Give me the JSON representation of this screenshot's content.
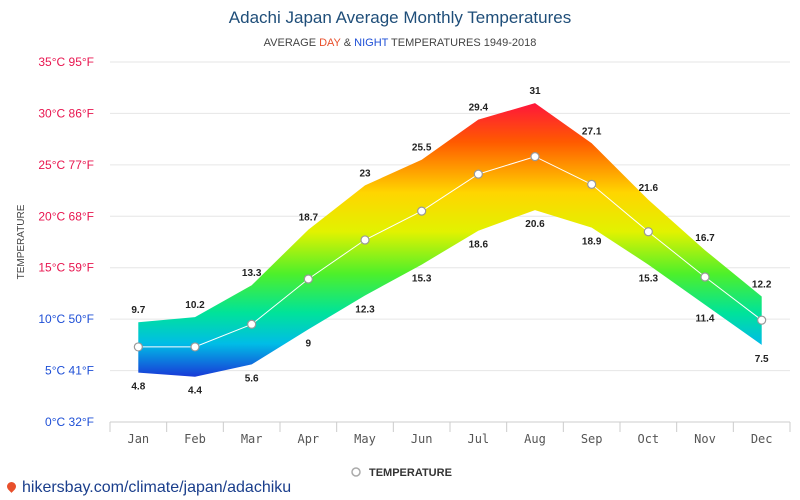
{
  "title": "Adachi Japan Average Monthly Temperatures",
  "subtitle": {
    "part1": "AVERAGE ",
    "day": "DAY",
    "amp": " & ",
    "night": "NIGHT",
    "part2": " TEMPERATURES 1949-2018"
  },
  "source": "hikersbay.com/climate/japan/adachiku",
  "legend_label": "TEMPERATURE",
  "colors": {
    "title": "#1f4e79",
    "day": "#e8502c",
    "night": "#1e4fd6",
    "ytick_warm": "#e8154f",
    "ytick_cold": "#1e4fd6"
  },
  "chart_data": {
    "type": "area",
    "title": "Adachi Japan Average Monthly Temperatures",
    "ylabel": "TEMPERATURE",
    "categories": [
      "Jan",
      "Feb",
      "Mar",
      "Apr",
      "May",
      "Jun",
      "Jul",
      "Aug",
      "Sep",
      "Oct",
      "Nov",
      "Dec"
    ],
    "ylim": [
      0,
      35
    ],
    "yticks": [
      {
        "value": 0,
        "label": "0°C 32°F"
      },
      {
        "value": 5,
        "label": "5°C 41°F"
      },
      {
        "value": 10,
        "label": "10°C 50°F"
      },
      {
        "value": 15,
        "label": "15°C 59°F"
      },
      {
        "value": 20,
        "label": "20°C 68°F"
      },
      {
        "value": 25,
        "label": "25°C 77°F"
      },
      {
        "value": 30,
        "label": "30°C 86°F"
      },
      {
        "value": 35,
        "label": "35°C 95°F"
      }
    ],
    "series": [
      {
        "name": "DAY",
        "values": [
          9.7,
          10.2,
          13.3,
          18.7,
          23,
          25.5,
          29.4,
          31,
          27.1,
          21.6,
          16.7,
          12.2
        ]
      },
      {
        "name": "NIGHT",
        "values": [
          4.8,
          4.4,
          5.6,
          9,
          12.3,
          15.3,
          18.6,
          20.6,
          18.9,
          15.3,
          11.4,
          7.5
        ]
      },
      {
        "name": "TEMPERATURE",
        "values": [
          7.3,
          7.3,
          9.5,
          13.9,
          17.7,
          20.5,
          24.1,
          25.8,
          23.1,
          18.5,
          14.1,
          9.9
        ]
      }
    ],
    "grid": true,
    "legend_position": "bottom-center"
  }
}
